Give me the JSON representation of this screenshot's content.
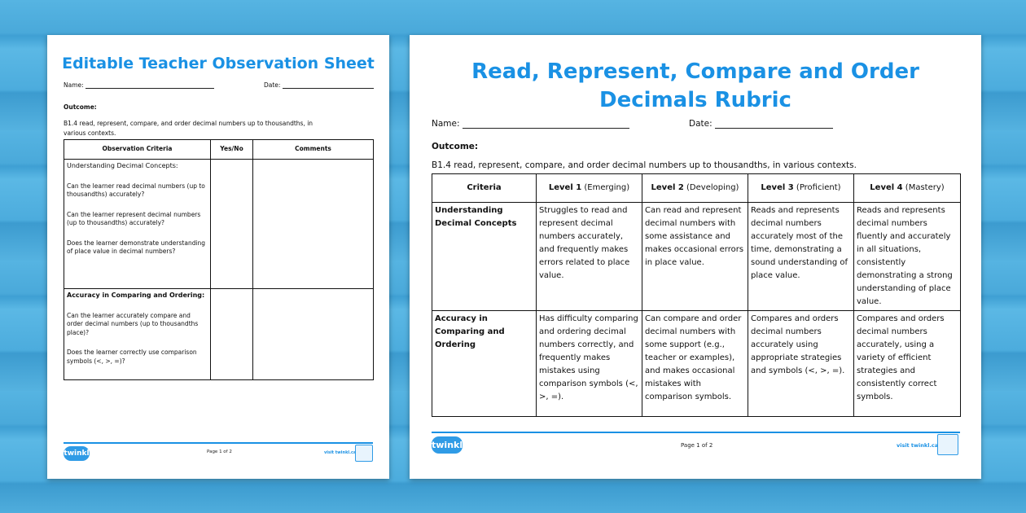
{
  "left": {
    "title": "Editable Teacher Observation Sheet",
    "name_label": "Name:",
    "date_label": "Date:",
    "outcome_label": "Outcome:",
    "outcome_text": "B1.4 read, represent, compare, and order decimal numbers up to thousandths, in various contexts.",
    "headers": [
      "Observation Criteria",
      "Yes/No",
      "Comments"
    ],
    "rows": [
      {
        "heading": "Understanding Decimal Concepts:",
        "questions": [
          "Can the learner read decimal numbers (up to thousandths) accurately?",
          "Can the learner represent decimal numbers (up to thousandths) accurately?",
          "Does the learner demonstrate understanding of place value in decimal numbers?"
        ]
      },
      {
        "heading": "Accuracy in Comparing and Ordering:",
        "questions": [
          "Can the learner accurately compare and order decimal numbers (up to thousandths place)?",
          "Does the learner correctly use comparison symbols (<, >, =)?"
        ]
      }
    ],
    "footer": {
      "logo": "twinkl",
      "page": "Page 1 of 2",
      "visit": "visit twinkl.ca"
    }
  },
  "right": {
    "title_line1": "Read, Represent, Compare and Order",
    "title_line2": "Decimals Rubric",
    "name_label": "Name:",
    "date_label": "Date:",
    "outcome_label": "Outcome:",
    "outcome_text": "B1.4 read, represent, compare, and order decimal numbers up to thousandths, in various contexts.",
    "headers": [
      {
        "bold": "Criteria",
        "rest": ""
      },
      {
        "bold": "Level 1",
        "rest": " (Emerging)"
      },
      {
        "bold": "Level 2",
        "rest": " (Developing)"
      },
      {
        "bold": "Level 3",
        "rest": " (Proficient)"
      },
      {
        "bold": "Level 4",
        "rest": " (Mastery)"
      }
    ],
    "rows": [
      [
        "Understanding Decimal Concepts",
        "Struggles to read and represent decimal numbers accurately, and frequently makes errors related to place value.",
        "Can read and represent decimal numbers with some assistance and makes occasional errors in place value.",
        "Reads and represents decimal numbers accurately most of the time, demonstrating a sound understanding of place value.",
        "Reads and represents decimal numbers fluently and accurately in all situations, consistently demonstrating a strong understanding of place value."
      ],
      [
        "Accuracy in Comparing and Ordering",
        "Has difficulty comparing and ordering decimal numbers correctly, and frequently makes mistakes using comparison symbols (<, >, =).",
        "Can compare and order decimal numbers with some support (e.g., teacher or examples), and makes occasional mistakes with comparison symbols.",
        "Compares and orders decimal numbers accurately using appropriate strategies and symbols (<, >, =).",
        "Compares and orders decimal numbers accurately, using a variety of efficient strategies and consistently correct symbols."
      ]
    ],
    "footer": {
      "logo": "twinkl",
      "page": "Page 1 of 2",
      "visit": "visit twinkl.ca"
    }
  },
  "colors": {
    "accent": "#1a91e4",
    "background": "#4aa9da"
  }
}
